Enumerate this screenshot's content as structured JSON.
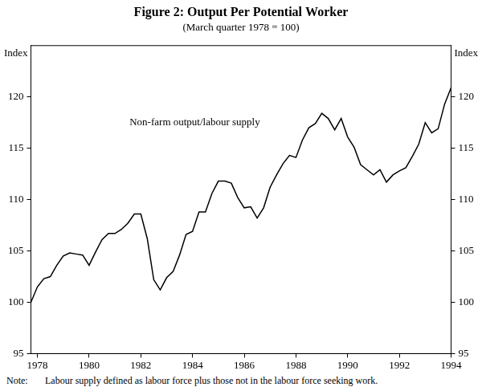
{
  "chart_data": {
    "type": "line",
    "title": "Figure 2: Output Per Potential Worker",
    "subtitle": "(March quarter 1978 = 100)",
    "ylabel": "Index",
    "y2label": "Index",
    "annotation": "Non-farm output/labour supply",
    "note_label": "Note:",
    "note": "Labour supply defined as labour force plus those not in the labour force seeking work.",
    "categories": [
      null,
      "1978",
      null,
      null,
      null,
      null,
      null,
      null,
      null,
      "1980",
      null,
      null,
      null,
      null,
      null,
      null,
      null,
      "1982",
      null,
      null,
      null,
      null,
      null,
      null,
      null,
      "1984",
      null,
      null,
      null,
      null,
      null,
      null,
      null,
      "1986",
      null,
      null,
      null,
      null,
      null,
      null,
      null,
      "1988",
      null,
      null,
      null,
      null,
      null,
      null,
      null,
      "1990",
      null,
      null,
      null,
      null,
      null,
      null,
      null,
      "1992",
      null,
      null,
      null,
      null,
      null,
      null,
      null,
      "1994"
    ],
    "series": [
      {
        "name": "Non-farm output/labour supply",
        "color": "#000000",
        "values": [
          100,
          101.5,
          102.3,
          102.5,
          103.6,
          104.5,
          104.8,
          104.7,
          104.6,
          103.6,
          104.9,
          106.1,
          106.7,
          106.7,
          107.1,
          107.7,
          108.6,
          108.6,
          106.2,
          102.2,
          101.2,
          102.4,
          103.0,
          104.6,
          106.6,
          106.9,
          108.8,
          108.8,
          110.6,
          111.8,
          111.8,
          111.6,
          110.2,
          109.2,
          109.3,
          108.2,
          109.2,
          111.2,
          112.4,
          113.5,
          114.3,
          114.1,
          115.8,
          117.0,
          117.4,
          118.4,
          117.9,
          116.8,
          117.9,
          116.1,
          115.1,
          113.4,
          112.9,
          112.4,
          112.9,
          111.7,
          112.4,
          112.8,
          113.1,
          114.2,
          115.4,
          117.5,
          116.5,
          116.9,
          119.3,
          120.9
        ]
      }
    ],
    "ylim": [
      95,
      125
    ],
    "yticks": [
      95,
      100,
      105,
      110,
      115,
      120
    ],
    "y2lim": [
      95,
      125
    ],
    "y2ticks": [
      95,
      100,
      105,
      110,
      115,
      120
    ],
    "grid": false
  }
}
